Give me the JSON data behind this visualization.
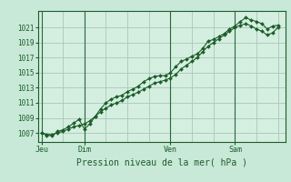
{
  "title": "",
  "xlabel": "Pression niveau de la mer( hPa )",
  "background_color": "#c8e8d8",
  "plot_bg_color": "#d4eee0",
  "grid_color": "#a8c8b8",
  "line_color": "#1a5e28",
  "yticks": [
    1007,
    1009,
    1011,
    1013,
    1015,
    1017,
    1019,
    1021
  ],
  "ylim_min": 1005.8,
  "ylim_max": 1023.2,
  "xlim_min": -4,
  "xlim_max": 272,
  "day_labels": [
    "Jeu",
    "Dim",
    "Ven",
    "Sam"
  ],
  "day_positions": [
    0,
    48,
    144,
    216
  ],
  "series1_x": [
    0,
    6,
    12,
    18,
    24,
    30,
    36,
    42,
    48,
    54,
    60,
    66,
    72,
    78,
    84,
    90,
    96,
    102,
    108,
    114,
    120,
    126,
    132,
    138,
    144,
    150,
    156,
    162,
    168,
    174,
    180,
    186,
    192,
    198,
    204,
    210,
    216,
    222,
    228,
    234,
    240,
    246,
    252,
    258,
    264
  ],
  "series1_y": [
    1007.0,
    1006.7,
    1006.6,
    1007.2,
    1007.4,
    1007.8,
    1008.3,
    1008.8,
    1007.5,
    1008.2,
    1009.2,
    1010.2,
    1011.0,
    1011.5,
    1011.8,
    1012.0,
    1012.5,
    1012.8,
    1013.2,
    1013.8,
    1014.2,
    1014.5,
    1014.6,
    1014.6,
    1015.0,
    1015.8,
    1016.5,
    1016.8,
    1017.2,
    1017.5,
    1018.2,
    1019.2,
    1019.4,
    1019.8,
    1020.2,
    1020.8,
    1021.2,
    1021.8,
    1022.3,
    1022.0,
    1021.8,
    1021.5,
    1020.8,
    1021.2,
    1021.3
  ],
  "series2_x": [
    0,
    6,
    12,
    18,
    24,
    30,
    36,
    42,
    48,
    54,
    60,
    66,
    72,
    78,
    84,
    90,
    96,
    102,
    108,
    114,
    120,
    126,
    132,
    138,
    144,
    150,
    156,
    162,
    168,
    174,
    180,
    186,
    192,
    198,
    204,
    210,
    216,
    222,
    228,
    234,
    240,
    246,
    252,
    258,
    264
  ],
  "series2_y": [
    1007.0,
    1006.8,
    1006.8,
    1007.0,
    1007.2,
    1007.5,
    1007.8,
    1008.0,
    1008.2,
    1008.6,
    1009.2,
    1009.8,
    1010.3,
    1010.7,
    1011.0,
    1011.3,
    1011.8,
    1012.1,
    1012.4,
    1012.8,
    1013.2,
    1013.6,
    1013.8,
    1014.0,
    1014.3,
    1014.8,
    1015.5,
    1016.0,
    1016.5,
    1017.0,
    1017.8,
    1018.5,
    1019.0,
    1019.5,
    1020.0,
    1020.5,
    1021.0,
    1021.3,
    1021.5,
    1021.2,
    1020.8,
    1020.5,
    1020.0,
    1020.3,
    1021.0
  ]
}
